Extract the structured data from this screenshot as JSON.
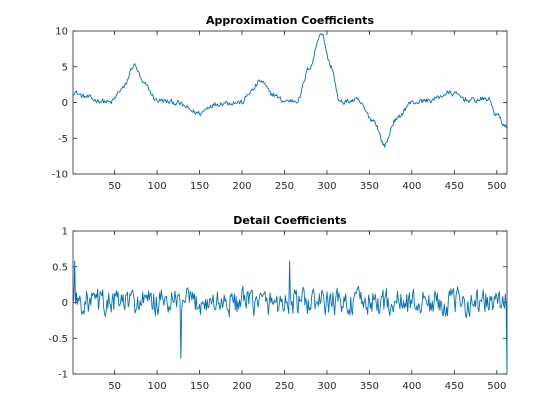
{
  "colors": {
    "series": "#0072BD",
    "axes": "#262626",
    "background": "#ffffff"
  },
  "chart_data": [
    {
      "type": "line",
      "title": "Approximation Coefficients",
      "xlabel": "",
      "ylabel": "",
      "xlim": [
        1,
        512
      ],
      "ylim": [
        -10,
        10
      ],
      "xticks": [
        50,
        100,
        150,
        200,
        250,
        300,
        350,
        400,
        450,
        500
      ],
      "yticks": [
        10,
        5,
        0,
        -5,
        -10
      ],
      "grid": false,
      "legend": "none",
      "noise_amplitude": 0.35,
      "keypoints": {
        "x": [
          1,
          15,
          30,
          45,
          60,
          73,
          85,
          100,
          120,
          150,
          165,
          180,
          200,
          210,
          222,
          235,
          250,
          265,
          280,
          293,
          305,
          315,
          335,
          355,
          368,
          380,
          400,
          420,
          445,
          470,
          490,
          500,
          512
        ],
        "y": [
          1.5,
          0.8,
          0.3,
          0.0,
          2.0,
          5.2,
          2.5,
          0.3,
          0.0,
          -1.5,
          -0.3,
          0.0,
          0.0,
          1.5,
          3.0,
          1.2,
          0.2,
          0.3,
          5.0,
          9.8,
          5.0,
          0.0,
          0.3,
          -2.5,
          -6.0,
          -2.5,
          0.0,
          0.3,
          1.3,
          0.3,
          0.5,
          -1.8,
          -3.5
        ]
      }
    },
    {
      "type": "line",
      "title": "Detail Coefficients",
      "xlabel": "",
      "ylabel": "",
      "xlim": [
        1,
        512
      ],
      "ylim": [
        -1,
        1
      ],
      "xticks": [
        50,
        100,
        150,
        200,
        250,
        300,
        350,
        400,
        450,
        500
      ],
      "yticks": [
        1,
        0.5,
        0,
        -0.5,
        -1
      ],
      "grid": false,
      "legend": "none",
      "noise_amplitude": 0.17,
      "keypoints": {
        "x": [
          1,
          128,
          256,
          512
        ],
        "y": [
          0.0,
          0.0,
          0.0,
          0.0
        ]
      },
      "spikes": [
        {
          "x": 3,
          "y": 0.58
        },
        {
          "x": 128,
          "y": -0.78
        },
        {
          "x": 256,
          "y": 0.58
        },
        {
          "x": 512,
          "y": -1.0
        }
      ]
    }
  ]
}
